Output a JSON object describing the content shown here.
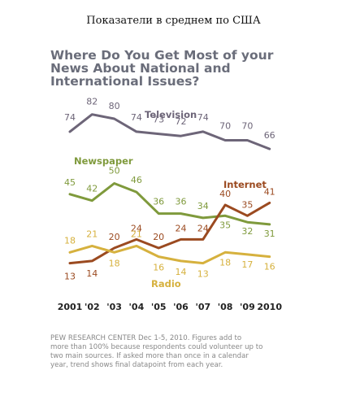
{
  "header": "Показатели в среднем по США",
  "title_lines": [
    "Where Do You Get Most of your",
    "News About National and",
    "International Issues?"
  ],
  "footnote_lines": [
    "PEW RESEARCH  CENTER Dec 1-5, 2010. Figures add to",
    "more than 100% because respondents could volunteer up to",
    "two main sources. If  asked more than once in a calendar",
    "year, trend shows final datapoint from each year."
  ],
  "chart_data": {
    "type": "line",
    "title": "Where Do You Get Most of your News About National and International Issues?",
    "xlabel": "",
    "ylabel": "",
    "categories": [
      "2001",
      "'02",
      "'03",
      "'04",
      "'05",
      "'06",
      "'07",
      "'08",
      "'09",
      "2010"
    ],
    "series": [
      {
        "name": "Television",
        "color": "#6d6578",
        "values": [
          74,
          82,
          80,
          74,
          73,
          72,
          74,
          70,
          70,
          66
        ]
      },
      {
        "name": "Newspaper",
        "color": "#7f9a3c",
        "values": [
          45,
          42,
          50,
          46,
          36,
          36,
          34,
          35,
          32,
          31
        ]
      },
      {
        "name": "Internet",
        "color": "#9b4a20",
        "values": [
          13,
          14,
          20,
          24,
          20,
          24,
          24,
          40,
          35,
          41
        ]
      },
      {
        "name": "Radio",
        "color": "#d6b13e",
        "values": [
          18,
          21,
          18,
          21,
          16,
          14,
          13,
          18,
          17,
          16
        ]
      }
    ],
    "grid": false,
    "legend": "inline labels"
  }
}
